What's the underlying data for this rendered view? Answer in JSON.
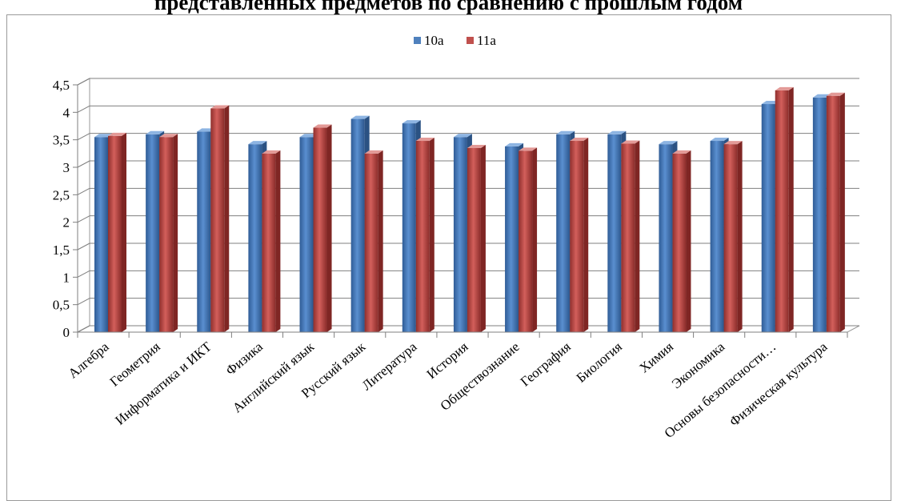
{
  "header": {
    "title_fragment": "представленных предметов по сравнению с прошлым годом"
  },
  "chart_data": {
    "type": "bar",
    "title": "",
    "xlabel": "",
    "ylabel": "",
    "ylim": [
      0,
      4.5
    ],
    "ytick_step": 0.5,
    "ytick_labels": [
      "0",
      "0,5",
      "1",
      "1,5",
      "2",
      "2,5",
      "3",
      "3,5",
      "4",
      "4,5"
    ],
    "grid": true,
    "legend_position": "top",
    "categories": [
      "Алгебра",
      "Геометрия",
      "Информатика и ИКТ",
      "Физика",
      "Английский язык",
      "Русский язык",
      "Литература",
      "История",
      "Обществознание",
      "География",
      "Биология",
      "Химия",
      "Экономика",
      "Основы безопасности…",
      "Физическая культура"
    ],
    "series": [
      {
        "name": "10а",
        "color": "#4f81bd",
        "values": [
          3.55,
          3.6,
          3.65,
          3.42,
          3.55,
          3.88,
          3.8,
          3.55,
          3.38,
          3.6,
          3.6,
          3.42,
          3.48,
          4.15,
          4.27
        ]
      },
      {
        "name": "11а",
        "color": "#c0504d",
        "values": [
          3.57,
          3.55,
          4.07,
          3.25,
          3.72,
          3.25,
          3.48,
          3.35,
          3.3,
          3.48,
          3.43,
          3.25,
          3.42,
          4.4,
          4.3
        ]
      }
    ]
  }
}
